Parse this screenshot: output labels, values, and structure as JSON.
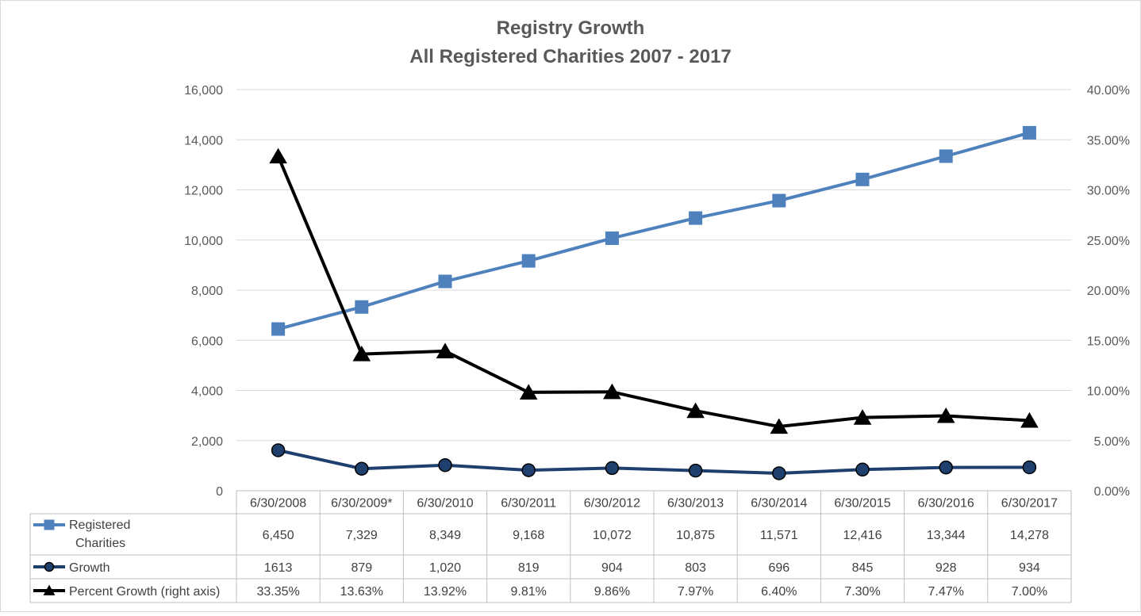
{
  "chart_data": {
    "type": "line",
    "title": "Registry Growth",
    "subtitle": "All Registered Charities 2007 - 2017",
    "categories": [
      "6/30/2008",
      "6/30/2009*",
      "6/30/2010",
      "6/30/2011",
      "6/30/2012",
      "6/30/2013",
      "6/30/2014",
      "6/30/2015",
      "6/30/2016",
      "6/30/2017"
    ],
    "y_left": {
      "ylim": [
        0,
        16000
      ],
      "ticks": [
        "0",
        "2,000",
        "4,000",
        "6,000",
        "8,000",
        "10,000",
        "12,000",
        "14,000",
        "16,000"
      ]
    },
    "y_right": {
      "ylim": [
        0,
        40
      ],
      "ticks": [
        "0.00%",
        "5.00%",
        "10.00%",
        "15.00%",
        "20.00%",
        "25.00%",
        "30.00%",
        "35.00%",
        "40.00%"
      ]
    },
    "grid": true,
    "legend_placement": "data-table",
    "series": [
      {
        "name": "Registered Charities",
        "name_lines": [
          "Registered",
          "Charities"
        ],
        "axis": "left",
        "color": "#4f81bd",
        "marker": "square",
        "values": [
          6450,
          7329,
          8349,
          9168,
          10072,
          10875,
          11571,
          12416,
          13344,
          14278
        ],
        "labels": [
          "6,450",
          "7,329",
          "8,349",
          "9,168",
          "10,072",
          "10,875",
          "11,571",
          "12,416",
          "13,344",
          "14,278"
        ]
      },
      {
        "name": "Growth",
        "name_lines": [
          "Growth"
        ],
        "axis": "left",
        "color": "#1f3f6e",
        "marker": "circle",
        "values": [
          1613,
          879,
          1020,
          819,
          904,
          803,
          696,
          845,
          928,
          934
        ],
        "labels": [
          "1613",
          "879",
          "1,020",
          "819",
          "904",
          "803",
          "696",
          "845",
          "928",
          "934"
        ]
      },
      {
        "name": "Percent Growth (right axis)",
        "name_lines": [
          "Percent Growth (right axis)"
        ],
        "axis": "right",
        "color": "#000000",
        "marker": "triangle",
        "values": [
          33.35,
          13.63,
          13.92,
          9.81,
          9.86,
          7.97,
          6.4,
          7.3,
          7.47,
          7.0
        ],
        "labels": [
          "33.35%",
          "13.63%",
          "13.92%",
          "9.81%",
          "9.86%",
          "7.97%",
          "6.40%",
          "7.30%",
          "7.47%",
          "7.00%"
        ]
      }
    ]
  }
}
